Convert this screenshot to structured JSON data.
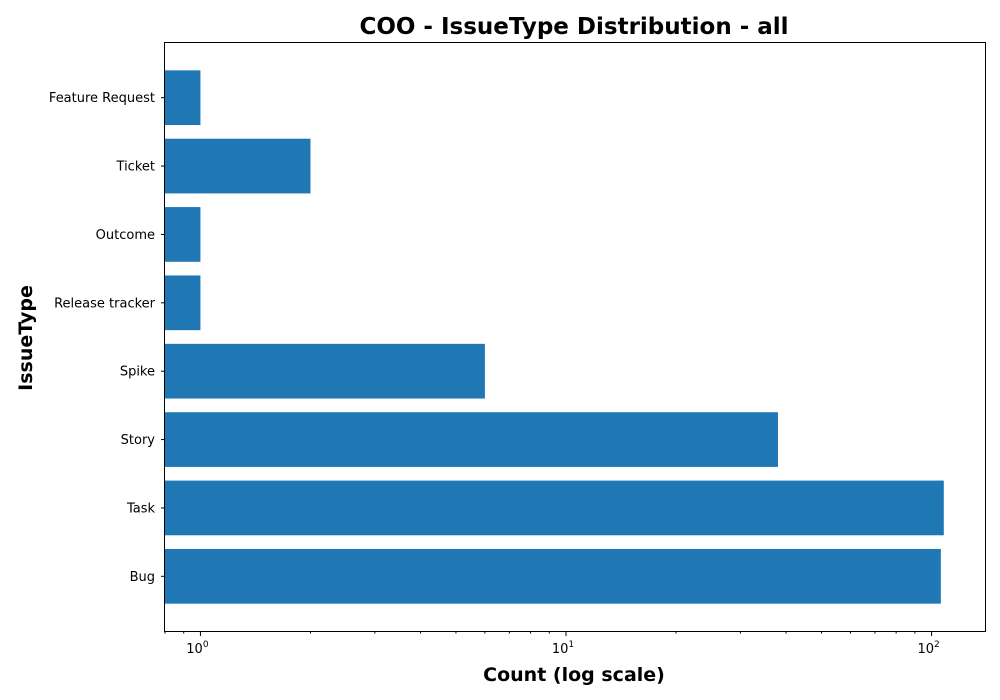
{
  "chart_data": {
    "type": "bar",
    "orientation": "horizontal",
    "title": "COO - IssueType Distribution - all",
    "xlabel": "Count (log scale)",
    "ylabel": "IssueType",
    "x_scale": "log",
    "xlim": [
      0.8,
      140
    ],
    "categories": [
      "Bug",
      "Task",
      "Story",
      "Spike",
      "Release tracker",
      "Outcome",
      "Ticket",
      "Feature Request"
    ],
    "values": [
      106,
      108,
      38,
      6,
      1,
      1,
      2,
      1
    ],
    "x_ticks": [
      {
        "value": 1,
        "base": "10",
        "exp": "0"
      },
      {
        "value": 10,
        "base": "10",
        "exp": "1"
      },
      {
        "value": 100,
        "base": "10",
        "exp": "2"
      }
    ],
    "bar_color": "#1f77b4",
    "grid": false,
    "legend": false
  }
}
